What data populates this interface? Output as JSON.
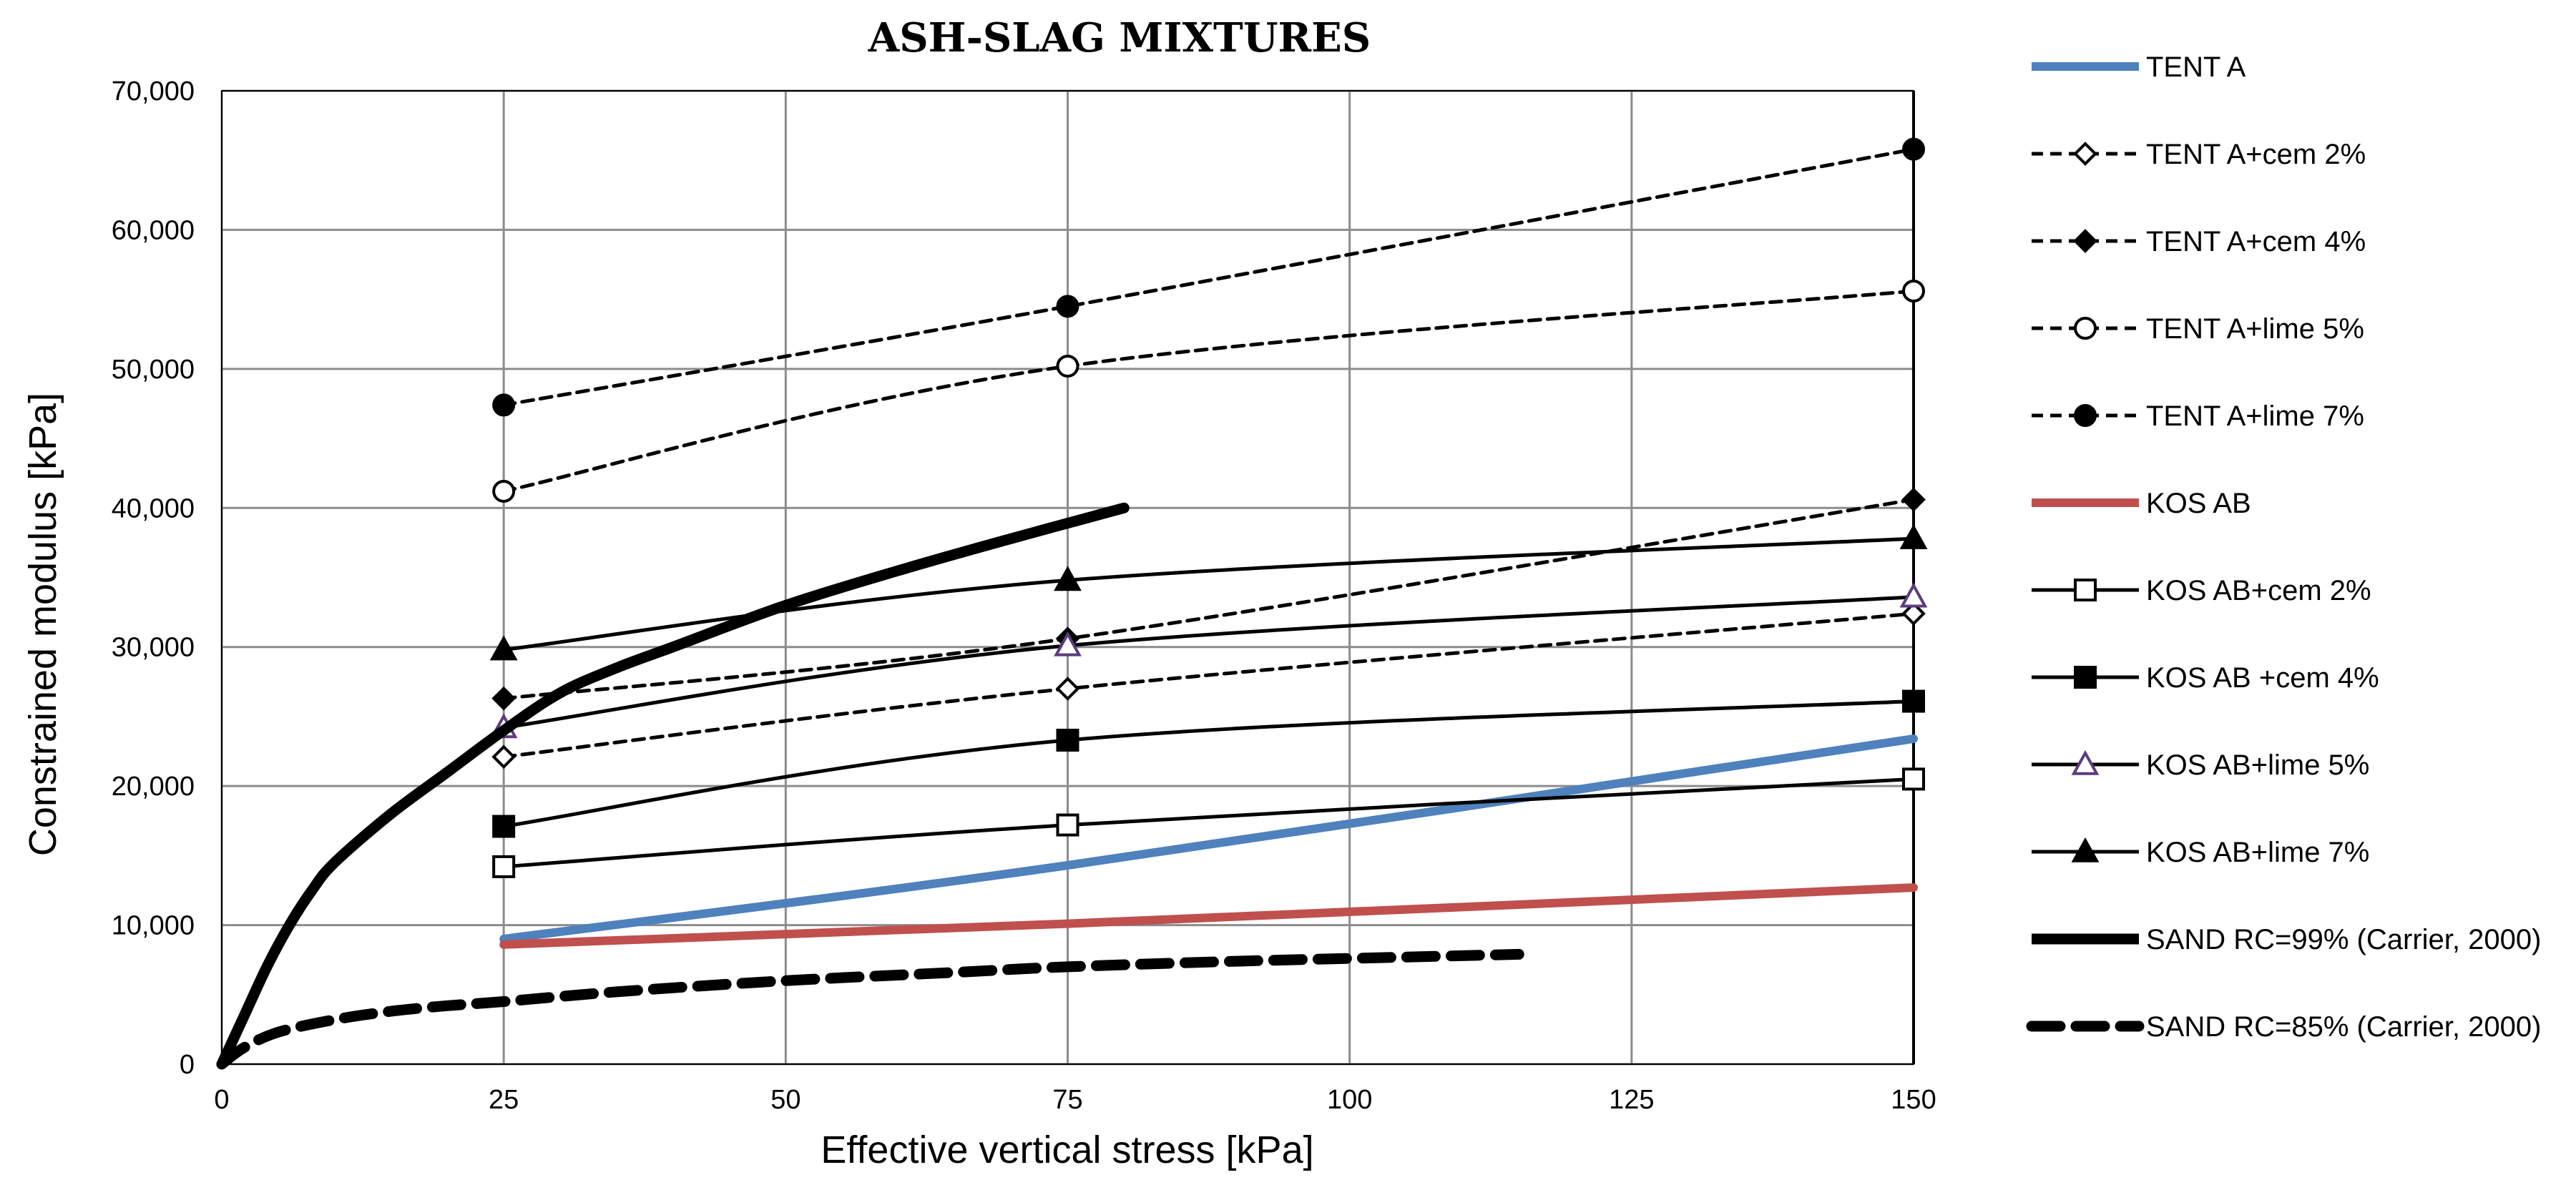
{
  "chart_data": {
    "type": "line",
    "title": "ASH-SLAG MIXTURES",
    "xlabel": "Effective vertical stress [kPa]",
    "ylabel": "Constrained modulus [kPa]",
    "xlim": [
      0,
      150
    ],
    "ylim": [
      0,
      70000
    ],
    "xticks": [
      0,
      25,
      50,
      75,
      100,
      125,
      150
    ],
    "yticks": [
      0,
      10000,
      20000,
      30000,
      40000,
      50000,
      60000,
      70000
    ],
    "xtick_labels": [
      "0",
      "25",
      "50",
      "75",
      "100",
      "125",
      "150"
    ],
    "ytick_labels": [
      "0",
      "10,000",
      "20,000",
      "30,000",
      "40,000",
      "50,000",
      "60,000",
      "70,000"
    ],
    "grid": true,
    "legend_position": "right",
    "series": [
      {
        "name": "TENT A",
        "x": [
          25,
          75,
          150
        ],
        "y": [
          9000,
          14300,
          23400
        ],
        "color": "#4f81bd",
        "line": "solid-thick",
        "marker": "none"
      },
      {
        "name": "TENT A+cem 2%",
        "x": [
          25,
          75,
          150
        ],
        "y": [
          22100,
          27000,
          32400
        ],
        "color": "#000000",
        "line": "dashed",
        "marker": "diamond-open"
      },
      {
        "name": "TENT A+cem 4%",
        "x": [
          25,
          75,
          150
        ],
        "y": [
          26300,
          30600,
          40600
        ],
        "color": "#000000",
        "line": "dashed",
        "marker": "diamond-filled"
      },
      {
        "name": "TENT A+lime 5%",
        "x": [
          25,
          75,
          150
        ],
        "y": [
          41200,
          50200,
          55600
        ],
        "color": "#000000",
        "line": "dashed",
        "marker": "circle-open"
      },
      {
        "name": "TENT A+lime 7%",
        "x": [
          25,
          75,
          150
        ],
        "y": [
          47400,
          54500,
          65800
        ],
        "color": "#000000",
        "line": "dashed",
        "marker": "circle-filled"
      },
      {
        "name": "KOS AB",
        "x": [
          25,
          75,
          150
        ],
        "y": [
          8600,
          10100,
          12700
        ],
        "color": "#c0504d",
        "line": "solid-thick",
        "marker": "none"
      },
      {
        "name": "KOS AB+cem 2%",
        "x": [
          25,
          75,
          150
        ],
        "y": [
          14200,
          17200,
          20500
        ],
        "color": "#000000",
        "line": "solid",
        "marker": "square-open"
      },
      {
        "name": "KOS AB +cem 4%",
        "x": [
          25,
          75,
          150
        ],
        "y": [
          17100,
          23300,
          26100
        ],
        "color": "#000000",
        "line": "solid",
        "marker": "square-filled"
      },
      {
        "name": "KOS AB+lime 5%",
        "x": [
          25,
          75,
          150
        ],
        "y": [
          24200,
          30100,
          33600
        ],
        "color": "#000000",
        "line": "solid",
        "marker": "triangle-open"
      },
      {
        "name": "KOS AB+lime 7%",
        "x": [
          25,
          75,
          150
        ],
        "y": [
          29800,
          34800,
          37800
        ],
        "color": "#000000",
        "line": "solid",
        "marker": "triangle-filled"
      },
      {
        "name": "SAND RC=99% (Carrier, 2000)",
        "x": [
          0,
          2,
          4,
          6,
          8,
          10,
          15,
          20,
          25,
          30,
          35,
          40,
          50,
          60,
          70,
          80
        ],
        "y": [
          0,
          3500,
          7000,
          10000,
          12500,
          14500,
          18000,
          21000,
          24000,
          26700,
          28500,
          30000,
          33000,
          35500,
          37800,
          40000
        ],
        "color": "#000000",
        "line": "solid-heavy",
        "marker": "none"
      },
      {
        "name": "SAND RC=85% (Carrier, 2000)",
        "x": [
          0,
          2,
          5,
          10,
          15,
          20,
          25,
          35,
          50,
          65,
          75,
          90,
          105,
          115
        ],
        "y": [
          0,
          1200,
          2300,
          3200,
          3800,
          4200,
          4500,
          5200,
          6000,
          6600,
          7000,
          7400,
          7700,
          7900
        ],
        "color": "#000000",
        "line": "dashed-heavy",
        "marker": "none"
      }
    ]
  }
}
